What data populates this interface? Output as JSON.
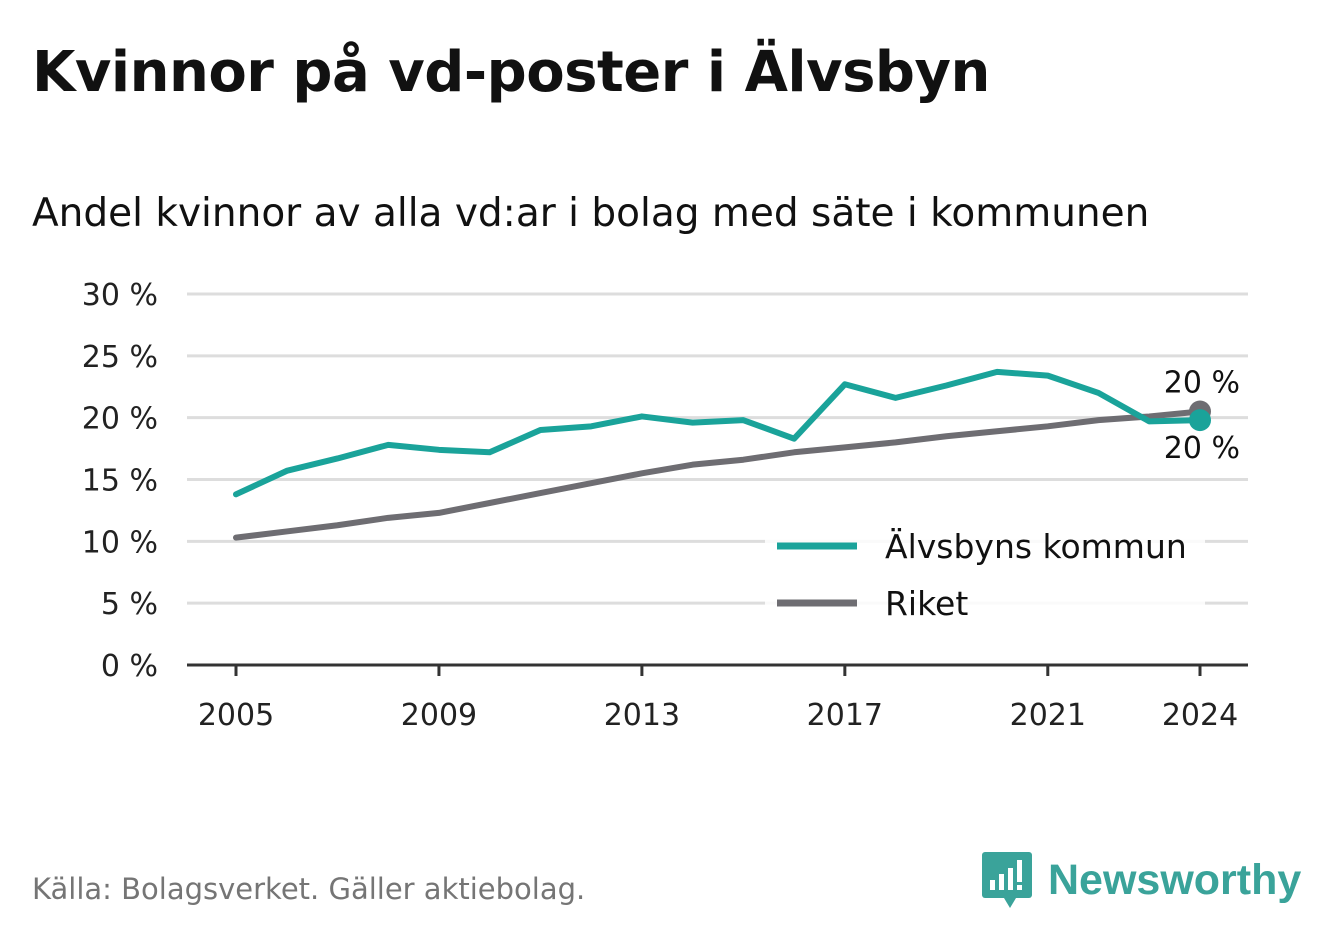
{
  "title": "Kvinnor på vd-poster i Älvsbyn",
  "subtitle": "Andel kvinnor av alla vd:ar i bolag med säte i kommunen",
  "source": "Källa: Bolagsverket. Gäller aktiebolag.",
  "logo": {
    "text": "Newsworthy",
    "icon": "newsworthy-logo-icon"
  },
  "colors": {
    "kommun": "#1aa39a",
    "riket": "#6e6d72",
    "grid": "#dddddd",
    "axis": "#333333",
    "logo": "#3aa39a"
  },
  "chart_data": {
    "type": "line",
    "x": [
      2005,
      2006,
      2007,
      2008,
      2009,
      2010,
      2011,
      2012,
      2013,
      2014,
      2015,
      2016,
      2017,
      2018,
      2019,
      2020,
      2021,
      2022,
      2023,
      2024
    ],
    "series": [
      {
        "name": "Älvsbyns kommun",
        "color": "#1aa39a",
        "values": [
          13.8,
          15.7,
          16.7,
          17.8,
          17.4,
          17.2,
          19.0,
          19.3,
          20.1,
          19.6,
          19.8,
          18.3,
          22.7,
          21.6,
          22.6,
          23.7,
          23.4,
          22.0,
          19.7,
          19.8
        ],
        "end_label": "20 %"
      },
      {
        "name": "Riket",
        "color": "#6e6d72",
        "values": [
          10.3,
          10.8,
          11.3,
          11.9,
          12.3,
          13.1,
          13.9,
          14.7,
          15.5,
          16.2,
          16.6,
          17.2,
          17.6,
          18.0,
          18.5,
          18.9,
          19.3,
          19.8,
          20.1,
          20.5
        ],
        "end_label": "20 %"
      }
    ],
    "x_ticks": [
      2005,
      2009,
      2013,
      2017,
      2021,
      2024
    ],
    "x_tick_labels": [
      "2005",
      "2009",
      "2013",
      "2017",
      "2021",
      "2024"
    ],
    "y_ticks": [
      0,
      5,
      10,
      15,
      20,
      25,
      30
    ],
    "y_tick_labels": [
      "0 %",
      "5 %",
      "10 %",
      "15 %",
      "20 %",
      "25 %",
      "30 %"
    ],
    "ylim": [
      0,
      30
    ],
    "grid": true,
    "legend_position": "bottom-right"
  }
}
